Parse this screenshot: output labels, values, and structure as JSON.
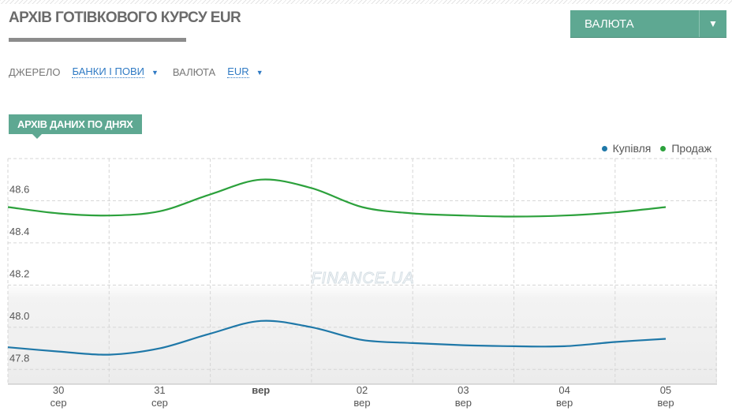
{
  "header": {
    "title": "АРХІВ ГОТІВКОВОГО КУРСУ EUR",
    "currency_button_label": "ВАЛЮТА",
    "currency_button_arrow": "▼"
  },
  "filters": {
    "source_label": "ДЖЕРЕЛО",
    "source_value": "БАНКИ І ПОВИ",
    "currency_label": "ВАЛЮТА",
    "currency_value": "EUR",
    "dropdown_arrow": "▼"
  },
  "section_tag": "АРХІВ ДАНИХ ПО ДНЯХ",
  "watermark": "FINANCE.UA",
  "colors": {
    "accent": "#5ea892",
    "buy": "#1f78a8",
    "sell": "#2ca13c",
    "link": "#2f7ac4"
  },
  "chart_data": {
    "type": "line",
    "x": [
      "30 сер",
      "31 сер",
      "вер",
      "02 вер",
      "03 вер",
      "04 вер",
      "05 вер"
    ],
    "ylim": [
      47.73,
      48.8
    ],
    "ytick_values": [
      47.8,
      48.0,
      48.2,
      48.4,
      48.6
    ],
    "yticks": [
      "47.8",
      "48.0",
      "48.2",
      "48.4",
      "48.6"
    ],
    "xticks": [
      {
        "day": "30",
        "month": "сер"
      },
      {
        "day": "31",
        "month": "сер"
      },
      {
        "day": "вер",
        "month": ""
      },
      {
        "day": "02",
        "month": "вер"
      },
      {
        "day": "03",
        "month": "вер"
      },
      {
        "day": "04",
        "month": "вер"
      },
      {
        "day": "05",
        "month": "вер"
      }
    ],
    "grid": true,
    "legend_position": "top-right",
    "series": [
      {
        "name": "Купівля",
        "color": "#1f78a8",
        "points": [
          [
            -0.5,
            47.905
          ],
          [
            0.0,
            47.885
          ],
          [
            0.5,
            47.87
          ],
          [
            1.0,
            47.9
          ],
          [
            1.5,
            47.97
          ],
          [
            2.0,
            48.03
          ],
          [
            2.5,
            48.0
          ],
          [
            3.0,
            47.94
          ],
          [
            3.5,
            47.925
          ],
          [
            4.0,
            47.915
          ],
          [
            4.5,
            47.91
          ],
          [
            5.0,
            47.91
          ],
          [
            5.5,
            47.93
          ],
          [
            6.0,
            47.945
          ]
        ]
      },
      {
        "name": "Продаж",
        "color": "#2ca13c",
        "points": [
          [
            -0.5,
            48.57
          ],
          [
            0.0,
            48.54
          ],
          [
            0.5,
            48.53
          ],
          [
            1.0,
            48.55
          ],
          [
            1.5,
            48.63
          ],
          [
            2.0,
            48.7
          ],
          [
            2.5,
            48.66
          ],
          [
            3.0,
            48.57
          ],
          [
            3.5,
            48.54
          ],
          [
            4.0,
            48.53
          ],
          [
            4.5,
            48.525
          ],
          [
            5.0,
            48.53
          ],
          [
            5.5,
            48.545
          ],
          [
            6.0,
            48.57
          ]
        ]
      }
    ]
  }
}
